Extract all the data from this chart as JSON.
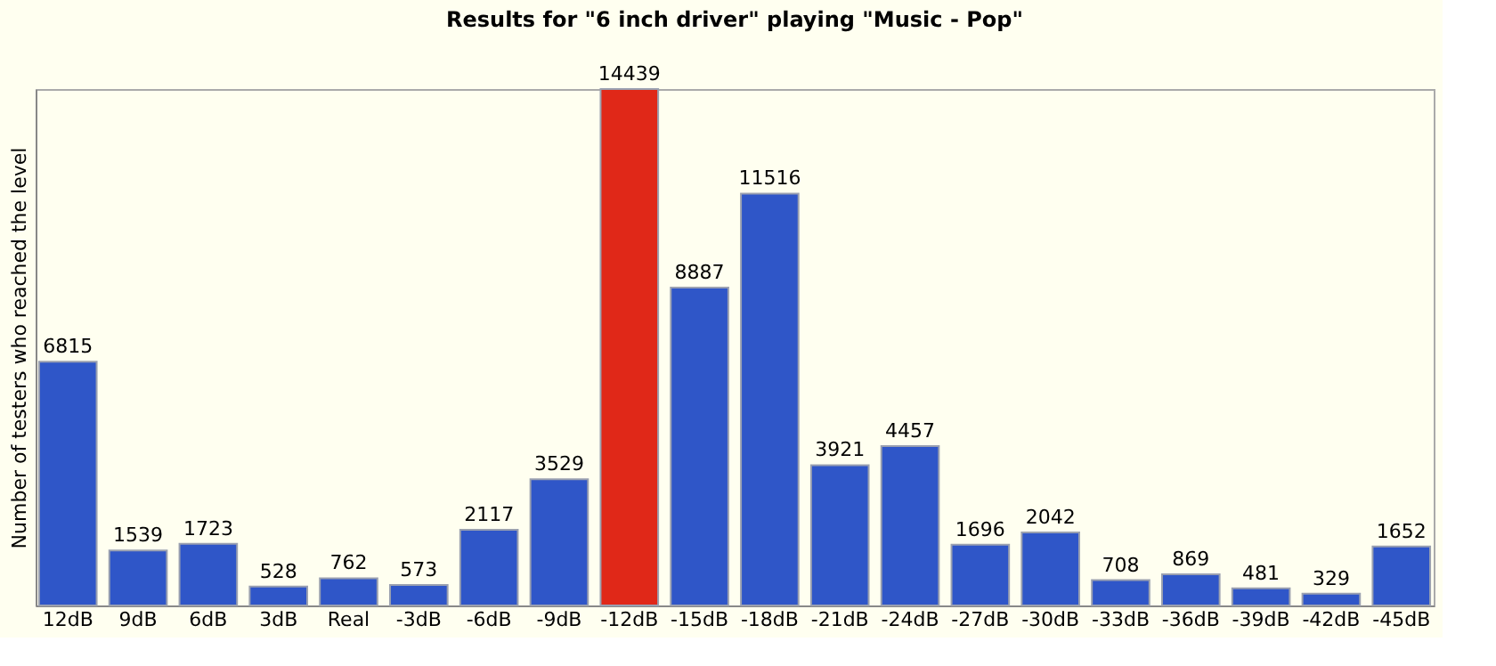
{
  "chart_data": {
    "type": "bar",
    "title": "Results for \"6 inch driver\" playing \"Music - Pop\"",
    "ylabel": "Number of testers who reached the level",
    "categories": [
      "12dB",
      "9dB",
      "6dB",
      "3dB",
      "Real",
      "-3dB",
      "-6dB",
      "-9dB",
      "-12dB",
      "-15dB",
      "-18dB",
      "-21dB",
      "-24dB",
      "-27dB",
      "-30dB",
      "-33dB",
      "-36dB",
      "-39dB",
      "-42dB",
      "-45dB"
    ],
    "values": [
      6815,
      1539,
      1723,
      528,
      762,
      573,
      2117,
      3529,
      14439,
      8887,
      11516,
      3921,
      4457,
      1696,
      2042,
      708,
      869,
      481,
      329,
      1652
    ],
    "colors": [
      "#2f56c8",
      "#2f56c8",
      "#2f56c8",
      "#2f56c8",
      "#2f56c8",
      "#2f56c8",
      "#2f56c8",
      "#2f56c8",
      "#e02818",
      "#2f56c8",
      "#2f56c8",
      "#2f56c8",
      "#2f56c8",
      "#2f56c8",
      "#2f56c8",
      "#2f56c8",
      "#2f56c8",
      "#2f56c8",
      "#2f56c8",
      "#2f56c8"
    ],
    "data_labels": true,
    "grid": false
  }
}
